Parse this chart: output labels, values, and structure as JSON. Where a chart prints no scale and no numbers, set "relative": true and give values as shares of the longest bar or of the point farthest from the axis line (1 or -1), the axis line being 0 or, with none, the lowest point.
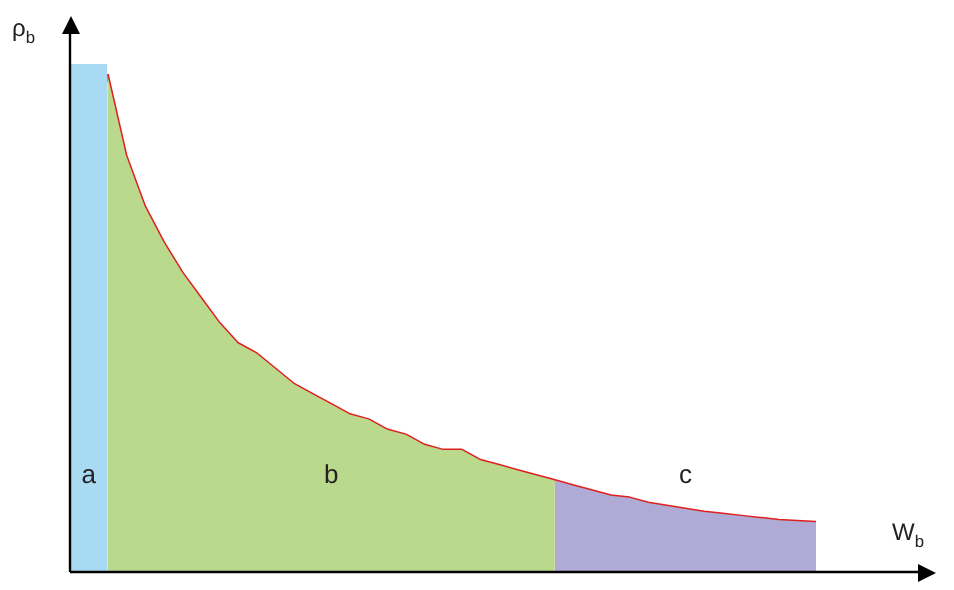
{
  "chart_data": {
    "type": "area",
    "relative": true,
    "xlabel": "W$_{b}$",
    "ylabel": "ρ$_{b}$",
    "legend": false,
    "categories": [
      null,
      null,
      null,
      null,
      null,
      null,
      null,
      null,
      null,
      null,
      null,
      null,
      null,
      null,
      null,
      null,
      null,
      null,
      null,
      null,
      null,
      null,
      null,
      null,
      null,
      null,
      null,
      null,
      null,
      null,
      null,
      null,
      null,
      null,
      null,
      null,
      null,
      null,
      null,
      null,
      null
    ],
    "series": [
      {
        "name": "a",
        "color": "#a8daf4",
        "values": [
          1,
          1,
          1,
          null,
          null,
          null,
          null,
          null,
          null,
          null,
          null,
          null,
          null,
          null,
          null,
          null,
          null,
          null,
          null,
          null,
          null,
          null,
          null,
          null,
          null,
          null,
          null,
          null,
          null,
          null,
          null,
          null,
          null,
          null,
          null,
          null,
          null,
          null,
          null,
          null,
          null
        ]
      },
      {
        "name": "b",
        "color": "#bad98c",
        "values": [
          null,
          null,
          0.98,
          0.82,
          0.72,
          0.65,
          0.59,
          0.54,
          0.49,
          0.45,
          0.43,
          0.4,
          0.37,
          0.35,
          0.33,
          0.31,
          0.3,
          0.28,
          0.27,
          0.25,
          0.24,
          0.24,
          0.22,
          0.21,
          0.2,
          0.19,
          0.18,
          null,
          null,
          null,
          null,
          null,
          null,
          null,
          null,
          null,
          null,
          null,
          null,
          null,
          null
        ]
      },
      {
        "name": "c",
        "color": "#afaad6",
        "values": [
          null,
          null,
          null,
          null,
          null,
          null,
          null,
          null,
          null,
          null,
          null,
          null,
          null,
          null,
          null,
          null,
          null,
          null,
          null,
          null,
          null,
          null,
          null,
          null,
          null,
          null,
          0.18,
          0.17,
          0.16,
          0.15,
          0.146,
          0.136,
          0.13,
          0.124,
          0.118,
          0.114,
          0.11,
          0.106,
          0.102,
          0.1,
          0.098
        ]
      },
      {
        "type": "line",
        "color": "#e0201e",
        "values": [
          null,
          null,
          0.98,
          0.82,
          0.72,
          0.65,
          0.59,
          0.54,
          0.49,
          0.45,
          0.43,
          0.4,
          0.37,
          0.35,
          0.33,
          0.31,
          0.3,
          0.28,
          0.27,
          0.25,
          0.24,
          0.24,
          0.22,
          0.21,
          0.2,
          0.19,
          0.18,
          0.17,
          0.16,
          0.15,
          0.146,
          0.136,
          0.13,
          0.124,
          0.118,
          0.114,
          0.11,
          0.106,
          0.102,
          0.1,
          0.098
        ]
      }
    ]
  }
}
